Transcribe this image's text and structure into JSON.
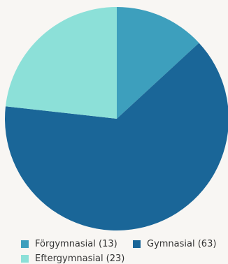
{
  "chart_data": {
    "type": "pie",
    "title": "",
    "slices": [
      {
        "label": "Förgymnasial",
        "value": 13,
        "color": "#3d9fbd",
        "legend": "Förgymnasial (13)"
      },
      {
        "label": "Gymnasial",
        "value": 63,
        "color": "#1a6698",
        "legend": "Gymnasial (63)"
      },
      {
        "label": "Eftergymnasial",
        "value": 23,
        "color": "#8ce0d8",
        "legend": "Eftergymnasial (23)"
      }
    ],
    "legend_position": "bottom"
  }
}
